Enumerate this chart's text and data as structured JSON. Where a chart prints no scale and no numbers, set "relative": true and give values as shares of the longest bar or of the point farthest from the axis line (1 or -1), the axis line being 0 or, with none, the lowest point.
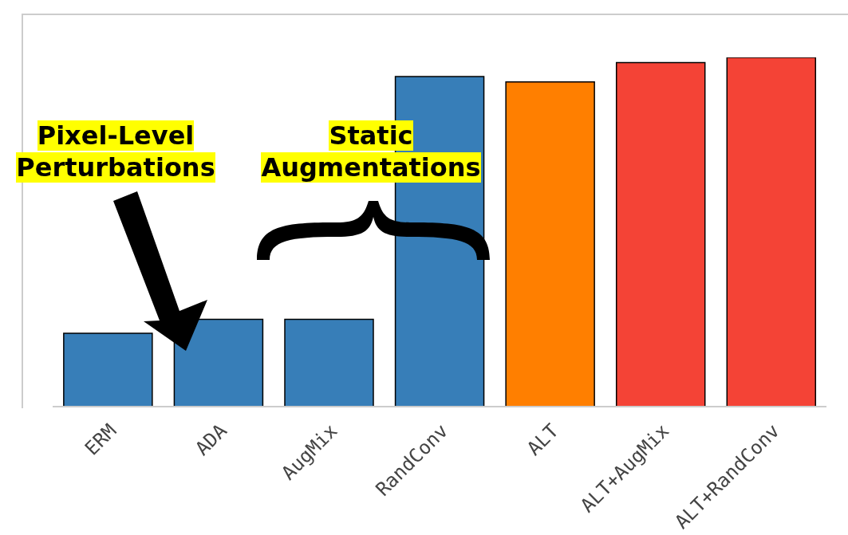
{
  "chart_data": {
    "type": "bar",
    "relative": true,
    "categories": [
      "ERM",
      "ADA",
      "AugMix",
      "RandConv",
      "ALT",
      "ALT+AugMix",
      "ALT+RandConv"
    ],
    "values": [
      0.21,
      0.25,
      0.25,
      0.945,
      0.93,
      0.985,
      1
    ],
    "colors": [
      "#377eb8",
      "#377eb8",
      "#377eb8",
      "#377eb8",
      "#ff7f00",
      "#f44336",
      "#f44336"
    ],
    "annotations": [
      "Pixel-Level Perturbations",
      "Static Augmentations"
    ],
    "grid": false,
    "legend": false
  }
}
